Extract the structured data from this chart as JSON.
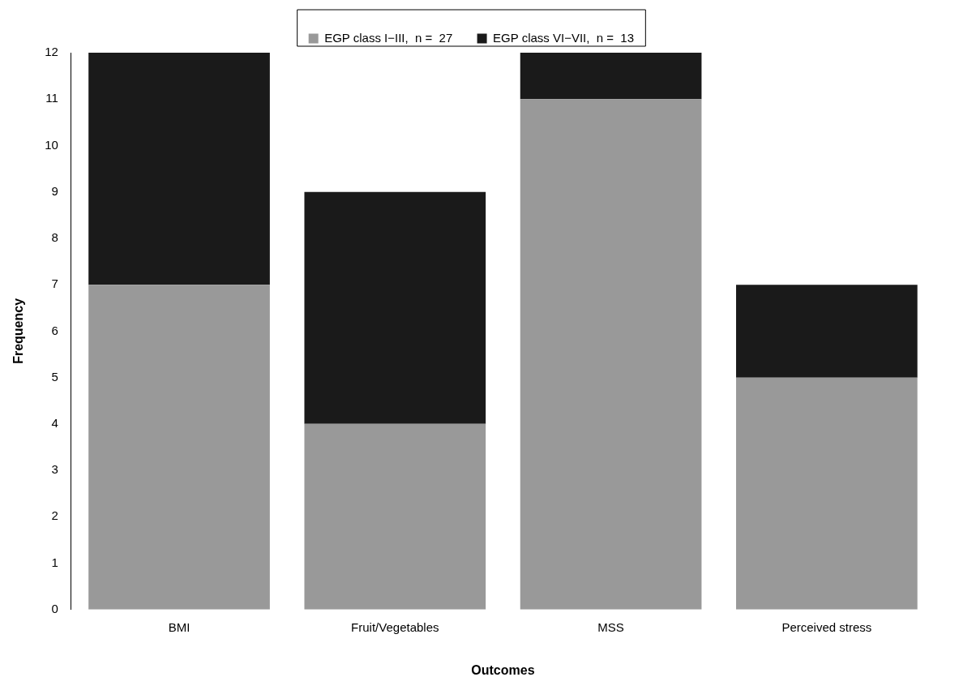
{
  "chart_data": {
    "type": "bar",
    "stacked": true,
    "xlabel": "Outcomes",
    "ylabel": "Frequency",
    "categories": [
      "BMI",
      "Fruit/Vegetables",
      "MSS",
      "Perceived stress"
    ],
    "series": [
      {
        "name": "EGP class I−III,  n =  27",
        "color": "#999999",
        "values": [
          7,
          4,
          11,
          5
        ]
      },
      {
        "name": "EGP class VI−VII,  n =  13",
        "color": "#1a1a1a",
        "values": [
          5,
          5,
          1,
          2
        ]
      }
    ],
    "ylim": [
      0,
      12
    ],
    "yticks": [
      0,
      1,
      2,
      3,
      4,
      5,
      6,
      7,
      8,
      9,
      10,
      11,
      12
    ],
    "legend": "top"
  }
}
